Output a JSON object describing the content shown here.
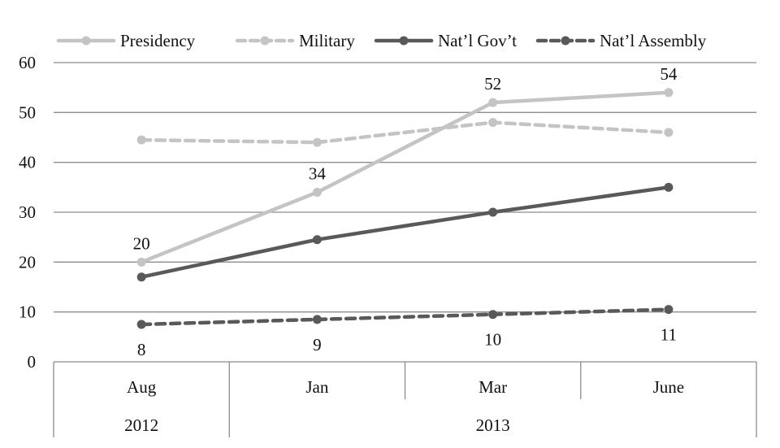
{
  "chart_data": {
    "type": "line",
    "categories": [
      "Aug",
      "Jan",
      "Mar",
      "June"
    ],
    "category_groups": [
      {
        "label": "2012",
        "span": 1
      },
      {
        "label": "2013",
        "span": 3
      }
    ],
    "ylim": [
      0,
      60
    ],
    "yticks": [
      0,
      10,
      20,
      30,
      40,
      50,
      60
    ],
    "grid": true,
    "legend_position": "top",
    "series": [
      {
        "name": "Presidency",
        "values": [
          20,
          34,
          52,
          54
        ],
        "labels": [
          "20",
          "34",
          "52",
          "54"
        ],
        "label_position": "above",
        "color": "#c4c4c4",
        "dashed": false
      },
      {
        "name": "Military",
        "values": [
          44.5,
          44,
          48,
          46
        ],
        "color": "#c4c4c4",
        "dashed": true
      },
      {
        "name": "Nat’l Gov’t",
        "values": [
          17,
          24.5,
          30,
          35
        ],
        "color": "#595959",
        "dashed": false
      },
      {
        "name": "Nat’l Assembly",
        "values": [
          7.5,
          8.5,
          9.5,
          10.5
        ],
        "labels": [
          "8",
          "9",
          "10",
          "11"
        ],
        "label_position": "below",
        "color": "#595959",
        "dashed": true
      }
    ]
  }
}
